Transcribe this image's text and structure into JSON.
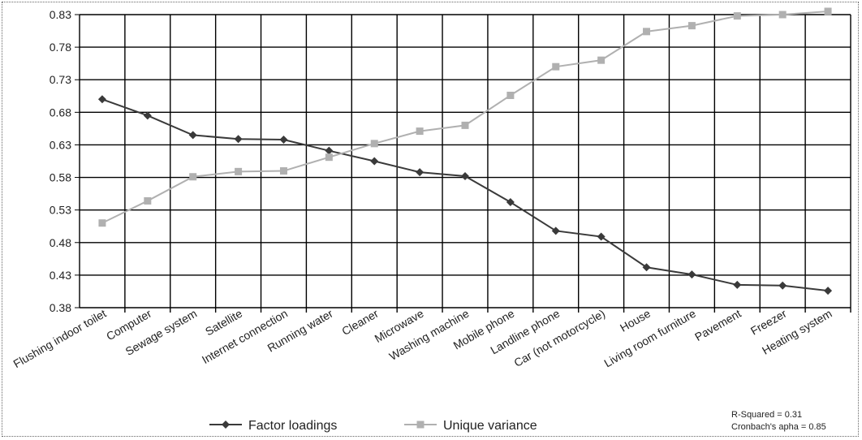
{
  "chart_data": {
    "type": "line",
    "categories": [
      "Flushing indoor toilet",
      "Computer",
      "Sewage system",
      "Satellite",
      "Internet connection",
      "Running water",
      "Cleaner",
      "Microwave",
      "Washing machine",
      "Mobile phone",
      "Landline phone",
      "Car (not motorcycle)",
      "House",
      "Living room furniture",
      "Pavement",
      "Freezer",
      "Heating system"
    ],
    "series": [
      {
        "name": "Factor loadings",
        "color": "#3a3a3a",
        "marker": "diamond",
        "values": [
          0.7,
          0.675,
          0.645,
          0.639,
          0.638,
          0.621,
          0.605,
          0.588,
          0.582,
          0.542,
          0.498,
          0.489,
          0.442,
          0.431,
          0.415,
          0.414,
          0.406
        ]
      },
      {
        "name": "Unique variance",
        "color": "#b0b0b0",
        "marker": "square",
        "values": [
          0.51,
          0.544,
          0.581,
          0.589,
          0.59,
          0.611,
          0.632,
          0.651,
          0.66,
          0.706,
          0.75,
          0.76,
          0.804,
          0.813,
          0.828,
          0.83,
          0.835
        ]
      }
    ],
    "yticks": [
      "0.38",
      "0.43",
      "0.48",
      "0.53",
      "0.58",
      "0.63",
      "0.68",
      "0.73",
      "0.78",
      "0.83"
    ],
    "ylim": [
      0.38,
      0.83
    ],
    "grid": true,
    "legend": "bottom-center",
    "title": "",
    "xlabel": "",
    "ylabel": "",
    "annotations": [
      "R-Squared = 0.31",
      "Cronbach's apha = 0.85"
    ]
  }
}
